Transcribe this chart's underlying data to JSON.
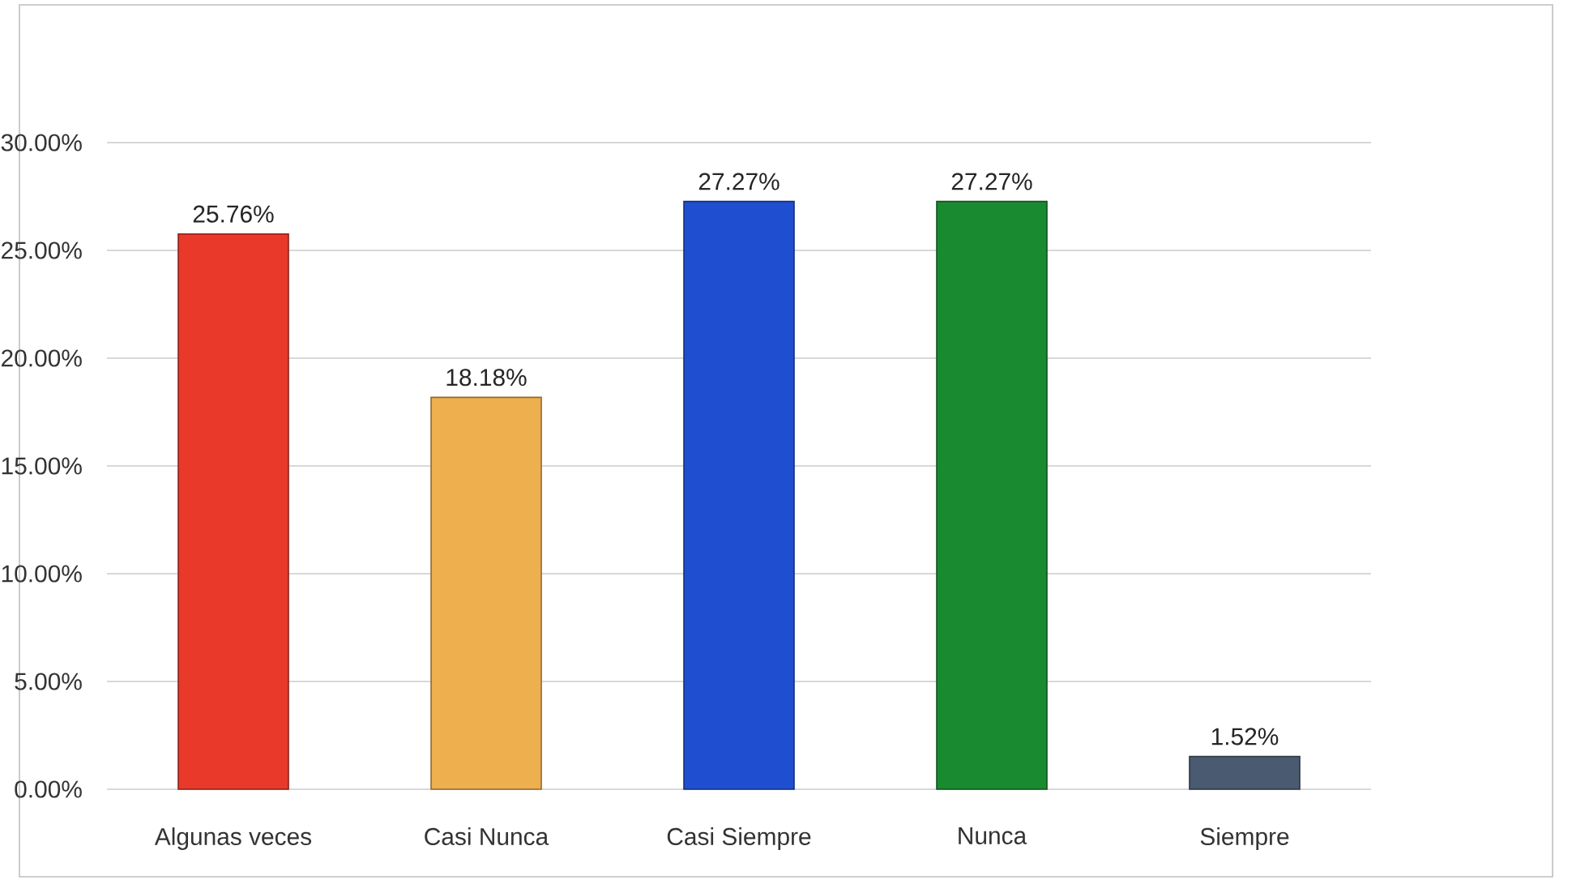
{
  "chart_data": {
    "type": "bar",
    "categories": [
      "Algunas veces",
      "Casi Nunca",
      "Casi Siempre",
      "Nunca",
      "Siempre"
    ],
    "values": [
      25.76,
      18.18,
      27.27,
      27.27,
      1.52
    ],
    "value_labels": [
      "25.76%",
      "18.18%",
      "27.27%",
      "27.27%",
      "1.52%"
    ],
    "colors": [
      "#e8392a",
      "#eeb04e",
      "#1f4fd0",
      "#1a8a30",
      "#4a5a70"
    ],
    "ylim": [
      0,
      30
    ],
    "yticks": [
      {
        "value": 0,
        "label": "0.00%"
      },
      {
        "value": 5,
        "label": "5.00%"
      },
      {
        "value": 10,
        "label": "10.00%"
      },
      {
        "value": 15,
        "label": "15.00%"
      },
      {
        "value": 20,
        "label": "20.00%"
      },
      {
        "value": 25,
        "label": "25.00%"
      },
      {
        "value": 30,
        "label": "30.00%"
      }
    ],
    "grid": "y"
  }
}
